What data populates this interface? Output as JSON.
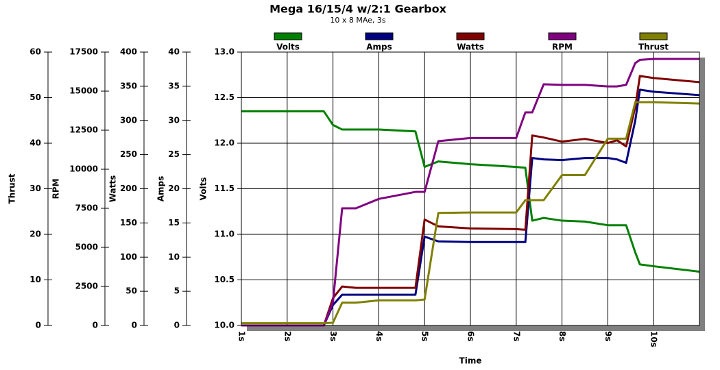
{
  "chart_data": {
    "type": "line",
    "title": "Mega 16/15/4 w/2:1 Gearbox",
    "subtitle": "10 x 8 MAe, 3s",
    "xlabel": "Time",
    "x": [
      1,
      2.8,
      3,
      3.2,
      3.5,
      4,
      4.8,
      5,
      5.3,
      6,
      7,
      7.2,
      7.35,
      7.6,
      8,
      8.5,
      9,
      9.2,
      9.4,
      9.6,
      9.7,
      10,
      11
    ],
    "xlim": [
      1,
      11
    ],
    "xticks": [
      {
        "value": 1,
        "label": "1s"
      },
      {
        "value": 2,
        "label": "2s"
      },
      {
        "value": 3,
        "label": "3s"
      },
      {
        "value": 4,
        "label": "4s"
      },
      {
        "value": 5,
        "label": "5s"
      },
      {
        "value": 6,
        "label": "6s"
      },
      {
        "value": 7,
        "label": "7s"
      },
      {
        "value": 8,
        "label": "8s"
      },
      {
        "value": 9,
        "label": "9s"
      },
      {
        "value": 10,
        "label": "10s"
      }
    ],
    "grid": true,
    "series": [
      {
        "name": "Volts",
        "color": "#008000",
        "ylabel": "Volts",
        "ylim": [
          10,
          13
        ],
        "yticks": [
          {
            "value": 10,
            "label": "10.0"
          },
          10.5,
          {
            "value": 11,
            "label": "11.0"
          },
          11.5,
          {
            "value": 12,
            "label": "12.0"
          },
          12.5,
          {
            "value": 13,
            "label": "13.0"
          }
        ],
        "values": [
          12.35,
          12.35,
          12.2,
          12.15,
          12.15,
          12.15,
          12.13,
          11.74,
          11.8,
          11.77,
          11.74,
          11.73,
          11.15,
          11.18,
          11.15,
          11.14,
          11.1,
          11.1,
          11.1,
          10.8,
          10.67,
          10.65,
          10.59
        ]
      },
      {
        "name": "Amps",
        "color": "#000080",
        "ylabel": "Amps",
        "ylim": [
          0,
          40
        ],
        "yticks": [
          0,
          5,
          10,
          15,
          20,
          25,
          30,
          35,
          40
        ],
        "values": [
          0,
          0,
          3,
          4.5,
          4.5,
          4.5,
          4.5,
          13,
          12.3,
          12.2,
          12.2,
          12.2,
          24.5,
          24.3,
          24.2,
          24.5,
          24.5,
          24.3,
          23.8,
          30,
          34.5,
          34.2,
          33.7
        ]
      },
      {
        "name": "Watts",
        "color": "#800000",
        "ylabel": "Watts",
        "ylim": [
          0,
          400
        ],
        "yticks": [
          0,
          50,
          100,
          150,
          200,
          250,
          300,
          350,
          400
        ],
        "values": [
          0,
          0,
          40,
          57,
          55,
          55,
          55,
          155,
          145,
          142,
          141,
          140,
          278,
          275,
          269,
          273,
          267,
          271,
          262,
          320,
          365,
          362,
          356
        ]
      },
      {
        "name": "RPM",
        "color": "#800080",
        "ylabel": "RPM",
        "ylim": [
          0,
          17500
        ],
        "yticks": [
          0,
          2500,
          5000,
          7500,
          10000,
          12500,
          15000,
          17500
        ],
        "values": [
          0,
          0,
          1500,
          7500,
          7500,
          8100,
          8550,
          8550,
          11800,
          12000,
          12000,
          13640,
          13640,
          15440,
          15400,
          15400,
          15300,
          15300,
          15400,
          16800,
          17000,
          17060,
          17060
        ]
      },
      {
        "name": "Thrust",
        "color": "#808000",
        "ylabel": "Thrust",
        "ylim": [
          0,
          60
        ],
        "yticks": [
          0,
          10,
          20,
          30,
          40,
          50,
          60
        ],
        "values": [
          0.5,
          0.5,
          0.6,
          5,
          5,
          5.5,
          5.5,
          5.7,
          24.7,
          24.8,
          24.8,
          27.5,
          27.5,
          27.5,
          33,
          33,
          41,
          41,
          41,
          49,
          49,
          49,
          48.7
        ]
      }
    ]
  }
}
